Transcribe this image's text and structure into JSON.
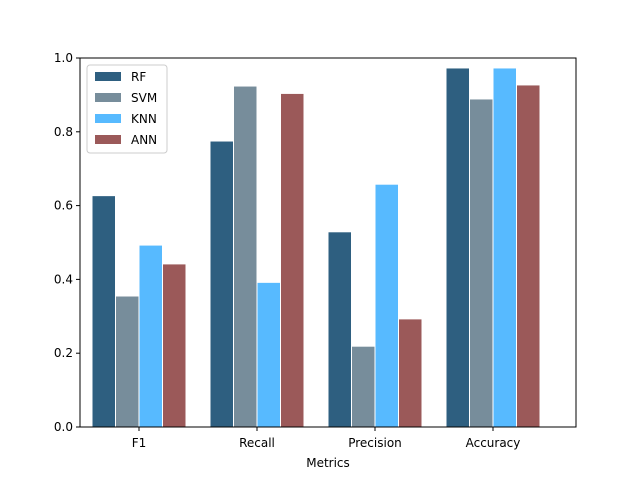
{
  "chart_data": {
    "type": "bar",
    "title": "",
    "xlabel": "Metrics",
    "ylabel": "",
    "categories": [
      "F1",
      "Recall",
      "Precision",
      "Accuracy"
    ],
    "series": [
      {
        "name": "RF",
        "color": "#2e5f80",
        "values": [
          0.627,
          0.775,
          0.529,
          0.973
        ]
      },
      {
        "name": "SVM",
        "color": "#778d9b",
        "values": [
          0.355,
          0.924,
          0.219,
          0.889
        ]
      },
      {
        "name": "KNN",
        "color": "#57baff",
        "values": [
          0.493,
          0.392,
          0.658,
          0.973
        ]
      },
      {
        "name": "ANN",
        "color": "#9b5959",
        "values": [
          0.442,
          0.904,
          0.293,
          0.927
        ]
      }
    ],
    "ylim": [
      0,
      1.0
    ],
    "yticks": [
      "0.0",
      "0.2",
      "0.4",
      "0.6",
      "0.8",
      "1.0"
    ],
    "grid": false,
    "legend_position": "top-left"
  }
}
